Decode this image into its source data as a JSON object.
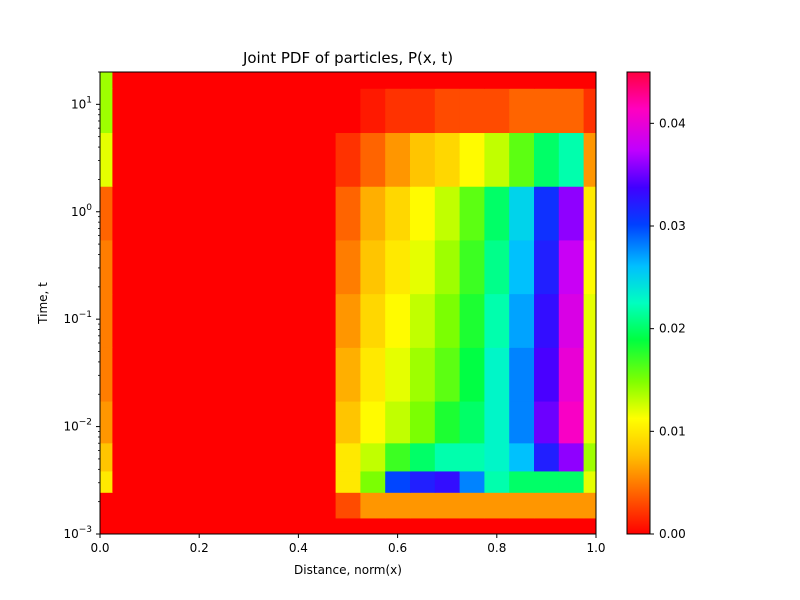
{
  "chart_data": {
    "type": "heatmap",
    "title": "Joint PDF of particles, P(x, t)",
    "xlabel": "Distance, norm(x)",
    "ylabel": "Time, t",
    "xlim": [
      0.0,
      1.0
    ],
    "ylim": [
      0.001,
      20
    ],
    "yscale": "log",
    "colormap": "gist_rainbow_r",
    "clim": [
      0.0,
      0.045
    ],
    "x_ticks": [
      "0.0",
      "0.2",
      "0.4",
      "0.6",
      "0.8",
      "1.0"
    ],
    "y_ticks": [
      {
        "base": "10",
        "exp": "−3"
      },
      {
        "base": "10",
        "exp": "−2"
      },
      {
        "base": "10",
        "exp": "−1"
      },
      {
        "base": "10",
        "exp": "0"
      },
      {
        "base": "10",
        "exp": "1"
      }
    ],
    "colorbar_ticks": [
      "0.00",
      "0.01",
      "0.02",
      "0.03",
      "0.04"
    ],
    "colorbar_tick_values": [
      0.0,
      0.01,
      0.02,
      0.03,
      0.04
    ],
    "x_tick_values": [
      0.0,
      0.2,
      0.4,
      0.6,
      0.8,
      1.0
    ],
    "y_tick_values": [
      0.001,
      0.01,
      0.1,
      1,
      10
    ],
    "grid": false,
    "x_centers": [
      0.0,
      0.05,
      0.1,
      0.15,
      0.2,
      0.25,
      0.3,
      0.35,
      0.4,
      0.45,
      0.5,
      0.55,
      0.6,
      0.65,
      0.7,
      0.75,
      0.8,
      0.85,
      0.9,
      0.95,
      1.0
    ],
    "t_centers": [
      0.001,
      0.002,
      0.003,
      0.005,
      0.01,
      0.03,
      0.1,
      0.3,
      1,
      3,
      10,
      20
    ],
    "values": [
      [
        0.0,
        0,
        0,
        0,
        0,
        0,
        0,
        0,
        0,
        0,
        0.0,
        0.0,
        0.0,
        0.0,
        0.0,
        0.0,
        0.0,
        0.0,
        0.0,
        0.0,
        0.0
      ],
      [
        0.0,
        0,
        0,
        0,
        0,
        0,
        0,
        0,
        0,
        0,
        0.003,
        0.006,
        0.006,
        0.006,
        0.006,
        0.006,
        0.006,
        0.006,
        0.006,
        0.006,
        0.006
      ],
      [
        0.01,
        0,
        0,
        0,
        0,
        0,
        0,
        0,
        0,
        0,
        0.01,
        0.015,
        0.03,
        0.032,
        0.033,
        0.028,
        0.022,
        0.02,
        0.02,
        0.02,
        0.012
      ],
      [
        0.008,
        0,
        0,
        0,
        0,
        0,
        0,
        0,
        0,
        0,
        0.01,
        0.013,
        0.017,
        0.02,
        0.022,
        0.022,
        0.023,
        0.026,
        0.032,
        0.036,
        0.014
      ],
      [
        0.006,
        0,
        0,
        0,
        0,
        0,
        0,
        0,
        0,
        0,
        0.008,
        0.011,
        0.013,
        0.015,
        0.018,
        0.02,
        0.023,
        0.028,
        0.035,
        0.041,
        0.012
      ],
      [
        0.005,
        0,
        0,
        0,
        0,
        0,
        0,
        0,
        0,
        0,
        0.007,
        0.01,
        0.012,
        0.014,
        0.016,
        0.019,
        0.023,
        0.028,
        0.034,
        0.04,
        0.012
      ],
      [
        0.005,
        0,
        0,
        0,
        0,
        0,
        0,
        0,
        0,
        0,
        0.006,
        0.009,
        0.011,
        0.013,
        0.015,
        0.018,
        0.022,
        0.027,
        0.033,
        0.039,
        0.012
      ],
      [
        0.005,
        0,
        0,
        0,
        0,
        0,
        0,
        0,
        0,
        0,
        0.005,
        0.008,
        0.01,
        0.012,
        0.014,
        0.017,
        0.021,
        0.026,
        0.032,
        0.038,
        0.011
      ],
      [
        0.004,
        0,
        0,
        0,
        0,
        0,
        0,
        0,
        0,
        0,
        0.004,
        0.007,
        0.009,
        0.011,
        0.013,
        0.016,
        0.02,
        0.025,
        0.031,
        0.036,
        0.01
      ],
      [
        0.012,
        0,
        0,
        0,
        0,
        0,
        0,
        0,
        0,
        0,
        0.002,
        0.004,
        0.006,
        0.008,
        0.009,
        0.011,
        0.013,
        0.016,
        0.02,
        0.022,
        0.006
      ],
      [
        0.014,
        0,
        0,
        0,
        0,
        0,
        0,
        0,
        0,
        0,
        0.0,
        0.001,
        0.002,
        0.002,
        0.003,
        0.003,
        0.003,
        0.004,
        0.004,
        0.004,
        0.002
      ],
      [
        0.014,
        0,
        0,
        0,
        0,
        0,
        0,
        0,
        0,
        0,
        0.0,
        0.0,
        0.0,
        0.0,
        0.0,
        0.0,
        0.0,
        0.0,
        0.0,
        0.0,
        0.0
      ]
    ]
  }
}
